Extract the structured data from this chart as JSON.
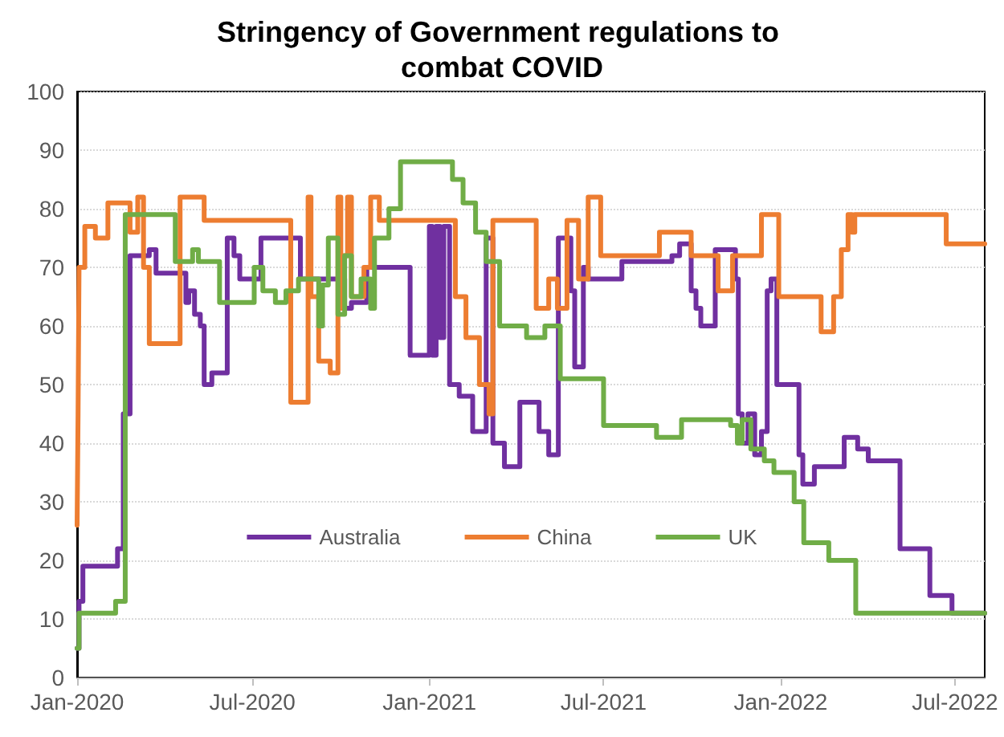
{
  "chart_data": {
    "type": "step",
    "title": "Stringency of Government regulations to combat COVID",
    "xlim": [
      "2020-01-01",
      "2022-08-01"
    ],
    "xticks": [
      {
        "value": "2020-01-01",
        "label": "Jan-2020"
      },
      {
        "value": "2020-07-01",
        "label": "Jul-2020"
      },
      {
        "value": "2021-01-01",
        "label": "Jan-2021"
      },
      {
        "value": "2021-07-01",
        "label": "Jul-2021"
      },
      {
        "value": "2022-01-01",
        "label": "Jan-2022"
      },
      {
        "value": "2022-07-01",
        "label": "Jul-2022"
      }
    ],
    "ylim": [
      0,
      100
    ],
    "yticks": [
      0,
      10,
      20,
      30,
      40,
      50,
      60,
      70,
      80,
      90,
      100
    ],
    "grid": "y",
    "legend": "bottom",
    "line_style": "solid",
    "series": [
      {
        "name": "Australia",
        "color": "#7030a0",
        "x": [
          "2020-01-01",
          "2020-01-03",
          "2020-01-07",
          "2020-02-12",
          "2020-02-18",
          "2020-02-25",
          "2020-03-16",
          "2020-03-23",
          "2020-04-23",
          "2020-04-26",
          "2020-05-02",
          "2020-05-08",
          "2020-05-12",
          "2020-05-20",
          "2020-06-05",
          "2020-06-12",
          "2020-06-18",
          "2020-07-10",
          "2020-08-20",
          "2020-09-10",
          "2020-10-05",
          "2020-10-12",
          "2020-10-28",
          "2020-12-12",
          "2021-01-01",
          "2021-01-04",
          "2021-01-08",
          "2021-01-12",
          "2021-01-16",
          "2021-01-22",
          "2021-02-01",
          "2021-02-15",
          "2021-03-01",
          "2021-03-08",
          "2021-03-20",
          "2021-04-05",
          "2021-04-25",
          "2021-05-05",
          "2021-05-15",
          "2021-05-28",
          "2021-06-01",
          "2021-06-10",
          "2021-06-15",
          "2021-07-20",
          "2021-09-10",
          "2021-09-18",
          "2021-09-30",
          "2021-10-05",
          "2021-10-10",
          "2021-10-25",
          "2021-11-15",
          "2021-11-18",
          "2021-11-22",
          "2021-11-28",
          "2021-12-05",
          "2021-12-12",
          "2021-12-18",
          "2021-12-22",
          "2021-12-28",
          "2022-01-20",
          "2022-01-24",
          "2022-02-05",
          "2022-03-08",
          "2022-03-22",
          "2022-04-02",
          "2022-05-05",
          "2022-06-05",
          "2022-06-28",
          "2022-08-01"
        ],
        "values": [
          5,
          13,
          19,
          22,
          45,
          72,
          73,
          69,
          64,
          66,
          62,
          60,
          50,
          52,
          75,
          72,
          68,
          75,
          68,
          68,
          63,
          64,
          70,
          55,
          77,
          55,
          77,
          58,
          77,
          50,
          48,
          42,
          75,
          40,
          36,
          47,
          42,
          38,
          75,
          66,
          53,
          70,
          68,
          71,
          72,
          74,
          66,
          63,
          60,
          73,
          68,
          45,
          40,
          45,
          38,
          42,
          66,
          68,
          50,
          38,
          33,
          36,
          41,
          39,
          37,
          22,
          14,
          11,
          11
        ]
      },
      {
        "name": "China",
        "color": "#ed7d31",
        "x": [
          "2020-01-01",
          "2020-01-02",
          "2020-01-03",
          "2020-01-09",
          "2020-01-20",
          "2020-02-02",
          "2020-02-25",
          "2020-03-04",
          "2020-03-10",
          "2020-03-16",
          "2020-04-17",
          "2020-05-12",
          "2020-08-10",
          "2020-08-28",
          "2020-08-31",
          "2020-09-08",
          "2020-09-20",
          "2020-09-28",
          "2020-10-01",
          "2020-10-04",
          "2020-10-08",
          "2020-10-12",
          "2020-10-25",
          "2020-11-01",
          "2020-11-10",
          "2021-01-28",
          "2021-02-08",
          "2021-02-22",
          "2021-03-04",
          "2021-03-08",
          "2021-04-22",
          "2021-05-05",
          "2021-05-14",
          "2021-05-24",
          "2021-06-05",
          "2021-06-15",
          "2021-06-28",
          "2021-08-28",
          "2021-09-30",
          "2021-10-28",
          "2021-11-12",
          "2021-12-12",
          "2021-12-30",
          "2022-02-12",
          "2022-02-25",
          "2022-03-05",
          "2022-03-12",
          "2022-03-16",
          "2022-03-19",
          "2022-06-22",
          "2022-08-01"
        ],
        "values": [
          26,
          45,
          70,
          77,
          75,
          81,
          76,
          82,
          70,
          57,
          82,
          78,
          47,
          82,
          65,
          54,
          52,
          82,
          63,
          72,
          82,
          65,
          70,
          82,
          78,
          65,
          58,
          50,
          45,
          78,
          63,
          68,
          63,
          78,
          68,
          82,
          72,
          76,
          72,
          66,
          72,
          79,
          65,
          59,
          65,
          73,
          79,
          76,
          79,
          74,
          74
        ]
      },
      {
        "name": "UK",
        "color": "#70ad47",
        "x": [
          "2020-01-01",
          "2020-01-03",
          "2020-02-10",
          "2020-02-20",
          "2020-04-12",
          "2020-04-30",
          "2020-05-06",
          "2020-05-28",
          "2020-07-03",
          "2020-07-12",
          "2020-07-25",
          "2020-08-05",
          "2020-08-18",
          "2020-09-08",
          "2020-09-12",
          "2020-09-18",
          "2020-09-28",
          "2020-10-05",
          "2020-10-12",
          "2020-10-22",
          "2020-11-01",
          "2020-11-05",
          "2020-11-20",
          "2020-12-02",
          "2021-01-25",
          "2021-02-05",
          "2021-02-18",
          "2021-03-01",
          "2021-03-15",
          "2021-04-12",
          "2021-05-01",
          "2021-05-17",
          "2021-07-01",
          "2021-08-25",
          "2021-09-20",
          "2021-11-10",
          "2021-11-17",
          "2021-11-22",
          "2021-12-01",
          "2021-12-15",
          "2021-12-25",
          "2022-01-15",
          "2022-01-25",
          "2022-02-20",
          "2022-03-20",
          "2022-08-01"
        ],
        "values": [
          5,
          11,
          13,
          79,
          71,
          73,
          71,
          64,
          70,
          66,
          64,
          66,
          68,
          60,
          67,
          75,
          62,
          72,
          65,
          68,
          63,
          75,
          80,
          88,
          85,
          81,
          76,
          71,
          60,
          58,
          60,
          51,
          43,
          41,
          44,
          43,
          40,
          44,
          39,
          37,
          35,
          30,
          23,
          20,
          11,
          11
        ]
      }
    ]
  }
}
